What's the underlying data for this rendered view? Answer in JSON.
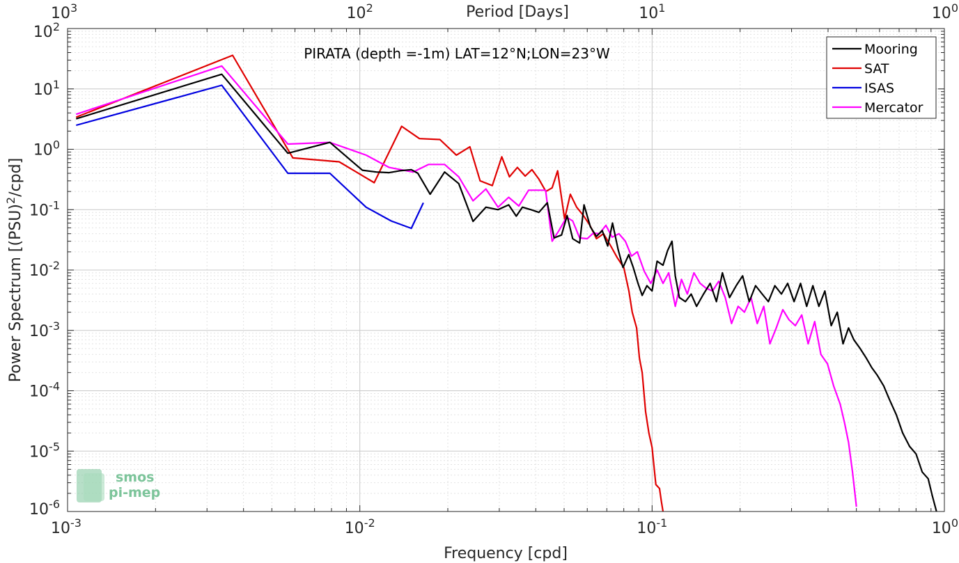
{
  "chart_data": {
    "type": "line",
    "title": "PIRATA (depth =-1m) LAT=12°N;LON=23°W",
    "xlabel": "Frequency [cpd]",
    "ylabel": "Power Spectrum [(PSU)²/cpd]",
    "top_xlabel": "Period [Days]",
    "x_scale": "log",
    "y_scale": "log",
    "xlim": [
      0.001,
      1
    ],
    "ylim": [
      1e-06,
      100
    ],
    "x_ticks": [
      0.001,
      0.01,
      0.1,
      1
    ],
    "x_tick_labels": [
      {
        "base": "10",
        "exp": "-3"
      },
      {
        "base": "10",
        "exp": "-2"
      },
      {
        "base": "10",
        "exp": "-1"
      },
      {
        "base": "10",
        "exp": "0"
      }
    ],
    "top_tick_labels": [
      {
        "base": "10",
        "exp": "3"
      },
      {
        "base": "10",
        "exp": "2"
      },
      {
        "base": "10",
        "exp": "1"
      },
      {
        "base": "10",
        "exp": "0"
      }
    ],
    "y_ticks": [
      1e-06,
      1e-05,
      0.0001,
      0.001,
      0.01,
      0.1,
      1,
      10,
      100
    ],
    "y_tick_labels": [
      {
        "base": "10",
        "exp": "-6"
      },
      {
        "base": "10",
        "exp": "-5"
      },
      {
        "base": "10",
        "exp": "-4"
      },
      {
        "base": "10",
        "exp": "-3"
      },
      {
        "base": "10",
        "exp": "-2"
      },
      {
        "base": "10",
        "exp": "-1"
      },
      {
        "base": "10",
        "exp": "0"
      },
      {
        "base": "10",
        "exp": "1"
      },
      {
        "base": "10",
        "exp": "2"
      }
    ],
    "grid": true,
    "legend_position": "top-right",
    "series": [
      {
        "name": "Mooring",
        "color": "#000000",
        "points": [
          [
            0.00107,
            3.2
          ],
          [
            0.00337,
            17.5
          ],
          [
            0.00567,
            0.86
          ],
          [
            0.0079,
            1.3
          ],
          [
            0.0102,
            0.45
          ],
          [
            0.0114,
            0.42
          ],
          [
            0.0126,
            0.41
          ],
          [
            0.0137,
            0.44
          ],
          [
            0.015,
            0.46
          ],
          [
            0.0158,
            0.4
          ],
          [
            0.0174,
            0.18
          ],
          [
            0.0195,
            0.42
          ],
          [
            0.0218,
            0.27
          ],
          [
            0.0244,
            0.064
          ],
          [
            0.027,
            0.11
          ],
          [
            0.0297,
            0.1
          ],
          [
            0.0323,
            0.12
          ],
          [
            0.0343,
            0.078
          ],
          [
            0.036,
            0.11
          ],
          [
            0.0385,
            0.1
          ],
          [
            0.041,
            0.09
          ],
          [
            0.0438,
            0.13
          ],
          [
            0.0462,
            0.034
          ],
          [
            0.049,
            0.038
          ],
          [
            0.0512,
            0.08
          ],
          [
            0.0535,
            0.033
          ],
          [
            0.0565,
            0.028
          ],
          [
            0.0585,
            0.12
          ],
          [
            0.0615,
            0.052
          ],
          [
            0.0645,
            0.036
          ],
          [
            0.0675,
            0.045
          ],
          [
            0.0705,
            0.025
          ],
          [
            0.0732,
            0.06
          ],
          [
            0.0765,
            0.022
          ],
          [
            0.0795,
            0.011
          ],
          [
            0.0832,
            0.018
          ],
          [
            0.0862,
            0.011
          ],
          [
            0.0895,
            0.006
          ],
          [
            0.0925,
            0.0038
          ],
          [
            0.096,
            0.0055
          ],
          [
            0.1,
            0.0045
          ],
          [
            0.104,
            0.014
          ],
          [
            0.109,
            0.012
          ],
          [
            0.113,
            0.021
          ],
          [
            0.117,
            0.03
          ],
          [
            0.12,
            0.008
          ],
          [
            0.124,
            0.0035
          ],
          [
            0.13,
            0.003
          ],
          [
            0.136,
            0.004
          ],
          [
            0.142,
            0.0025
          ],
          [
            0.15,
            0.004
          ],
          [
            0.158,
            0.006
          ],
          [
            0.166,
            0.003
          ],
          [
            0.174,
            0.009
          ],
          [
            0.184,
            0.0035
          ],
          [
            0.194,
            0.0055
          ],
          [
            0.204,
            0.008
          ],
          [
            0.215,
            0.003
          ],
          [
            0.226,
            0.0055
          ],
          [
            0.238,
            0.004
          ],
          [
            0.25,
            0.003
          ],
          [
            0.263,
            0.0055
          ],
          [
            0.277,
            0.004
          ],
          [
            0.291,
            0.006
          ],
          [
            0.306,
            0.003
          ],
          [
            0.322,
            0.006
          ],
          [
            0.338,
            0.0025
          ],
          [
            0.355,
            0.0055
          ],
          [
            0.372,
            0.0025
          ],
          [
            0.39,
            0.0045
          ],
          [
            0.41,
            0.0012
          ],
          [
            0.43,
            0.002
          ],
          [
            0.45,
            0.0006
          ],
          [
            0.47,
            0.0011
          ],
          [
            0.49,
            0.0007
          ],
          [
            0.515,
            0.0005
          ],
          [
            0.54,
            0.00035
          ],
          [
            0.565,
            0.00024
          ],
          [
            0.59,
            0.00018
          ],
          [
            0.62,
            0.00012
          ],
          [
            0.65,
            7e-05
          ],
          [
            0.685,
            4e-05
          ],
          [
            0.72,
            2e-05
          ],
          [
            0.76,
            1.2e-05
          ],
          [
            0.8,
            9e-06
          ],
          [
            0.84,
            4.5e-06
          ],
          [
            0.88,
            3.5e-06
          ],
          [
            0.91,
            1.8e-06
          ],
          [
            0.94,
            1e-06
          ]
        ]
      },
      {
        "name": "SAT",
        "color": "#e00000",
        "points": [
          [
            0.00107,
            3.4
          ],
          [
            0.00367,
            36
          ],
          [
            0.0059,
            0.72
          ],
          [
            0.0085,
            0.62
          ],
          [
            0.0112,
            0.28
          ],
          [
            0.0139,
            2.4
          ],
          [
            0.016,
            1.5
          ],
          [
            0.0188,
            1.45
          ],
          [
            0.0214,
            0.8
          ],
          [
            0.0238,
            1.1
          ],
          [
            0.0258,
            0.3
          ],
          [
            0.0284,
            0.25
          ],
          [
            0.0306,
            0.75
          ],
          [
            0.0325,
            0.35
          ],
          [
            0.0346,
            0.5
          ],
          [
            0.0368,
            0.36
          ],
          [
            0.0388,
            0.46
          ],
          [
            0.041,
            0.32
          ],
          [
            0.0433,
            0.2
          ],
          [
            0.0455,
            0.23
          ],
          [
            0.0475,
            0.44
          ],
          [
            0.0502,
            0.07
          ],
          [
            0.0525,
            0.18
          ],
          [
            0.0552,
            0.11
          ],
          [
            0.0582,
            0.08
          ],
          [
            0.0613,
            0.055
          ],
          [
            0.0645,
            0.033
          ],
          [
            0.0682,
            0.04
          ],
          [
            0.0722,
            0.025
          ],
          [
            0.076,
            0.016
          ],
          [
            0.08,
            0.011
          ],
          [
            0.0833,
            0.0045
          ],
          [
            0.0855,
            0.002
          ],
          [
            0.0885,
            0.0011
          ],
          [
            0.0905,
            0.00035
          ],
          [
            0.0925,
            0.0002
          ],
          [
            0.095,
            4.5e-05
          ],
          [
            0.0975,
            2e-05
          ],
          [
            0.1,
            1.15e-05
          ],
          [
            0.103,
            2.8e-06
          ],
          [
            0.106,
            2.4e-06
          ],
          [
            0.1075,
            1.5e-06
          ],
          [
            0.109,
            1e-06
          ]
        ]
      },
      {
        "name": "ISAS",
        "color": "#0000e0",
        "points": [
          [
            0.00107,
            2.5
          ],
          [
            0.00337,
            11.5
          ],
          [
            0.00567,
            0.4
          ],
          [
            0.0079,
            0.4
          ],
          [
            0.0105,
            0.11
          ],
          [
            0.0128,
            0.065
          ],
          [
            0.015,
            0.049
          ],
          [
            0.0165,
            0.13
          ]
        ]
      },
      {
        "name": "Mercator",
        "color": "#ff00ff",
        "points": [
          [
            0.00107,
            3.8
          ],
          [
            0.00337,
            24
          ],
          [
            0.00567,
            1.22
          ],
          [
            0.0079,
            1.3
          ],
          [
            0.0105,
            0.8
          ],
          [
            0.0126,
            0.5
          ],
          [
            0.0152,
            0.42
          ],
          [
            0.0172,
            0.56
          ],
          [
            0.0195,
            0.56
          ],
          [
            0.0218,
            0.35
          ],
          [
            0.0244,
            0.14
          ],
          [
            0.027,
            0.22
          ],
          [
            0.0297,
            0.11
          ],
          [
            0.0323,
            0.16
          ],
          [
            0.035,
            0.115
          ],
          [
            0.0378,
            0.21
          ],
          [
            0.041,
            0.21
          ],
          [
            0.0432,
            0.21
          ],
          [
            0.0455,
            0.03
          ],
          [
            0.048,
            0.045
          ],
          [
            0.051,
            0.075
          ],
          [
            0.0535,
            0.065
          ],
          [
            0.0565,
            0.034
          ],
          [
            0.06,
            0.033
          ],
          [
            0.063,
            0.041
          ],
          [
            0.066,
            0.04
          ],
          [
            0.0695,
            0.055
          ],
          [
            0.073,
            0.035
          ],
          [
            0.077,
            0.04
          ],
          [
            0.081,
            0.03
          ],
          [
            0.085,
            0.017
          ],
          [
            0.089,
            0.02
          ],
          [
            0.094,
            0.0095
          ],
          [
            0.099,
            0.006
          ],
          [
            0.104,
            0.01
          ],
          [
            0.109,
            0.006
          ],
          [
            0.114,
            0.009
          ],
          [
            0.12,
            0.0025
          ],
          [
            0.126,
            0.007
          ],
          [
            0.132,
            0.004
          ],
          [
            0.139,
            0.009
          ],
          [
            0.146,
            0.006
          ],
          [
            0.153,
            0.005
          ],
          [
            0.161,
            0.0045
          ],
          [
            0.169,
            0.0065
          ],
          [
            0.178,
            0.0035
          ],
          [
            0.187,
            0.0013
          ],
          [
            0.197,
            0.0025
          ],
          [
            0.207,
            0.002
          ],
          [
            0.218,
            0.0035
          ],
          [
            0.229,
            0.0013
          ],
          [
            0.241,
            0.0025
          ],
          [
            0.253,
            0.0006
          ],
          [
            0.266,
            0.0011
          ],
          [
            0.28,
            0.0022
          ],
          [
            0.294,
            0.0015
          ],
          [
            0.309,
            0.0012
          ],
          [
            0.325,
            0.0018
          ],
          [
            0.342,
            0.0006
          ],
          [
            0.36,
            0.0014
          ],
          [
            0.378,
            0.0004
          ],
          [
            0.398,
            0.00028
          ],
          [
            0.418,
            0.00012
          ],
          [
            0.44,
            6e-05
          ],
          [
            0.455,
            3e-05
          ],
          [
            0.47,
            1.4e-05
          ],
          [
            0.485,
            4.5e-06
          ],
          [
            0.5,
            1.2e-06
          ]
        ]
      }
    ]
  },
  "watermark": {
    "line1": "smos",
    "line2": "pi-mep",
    "color": "#7cc49a"
  }
}
